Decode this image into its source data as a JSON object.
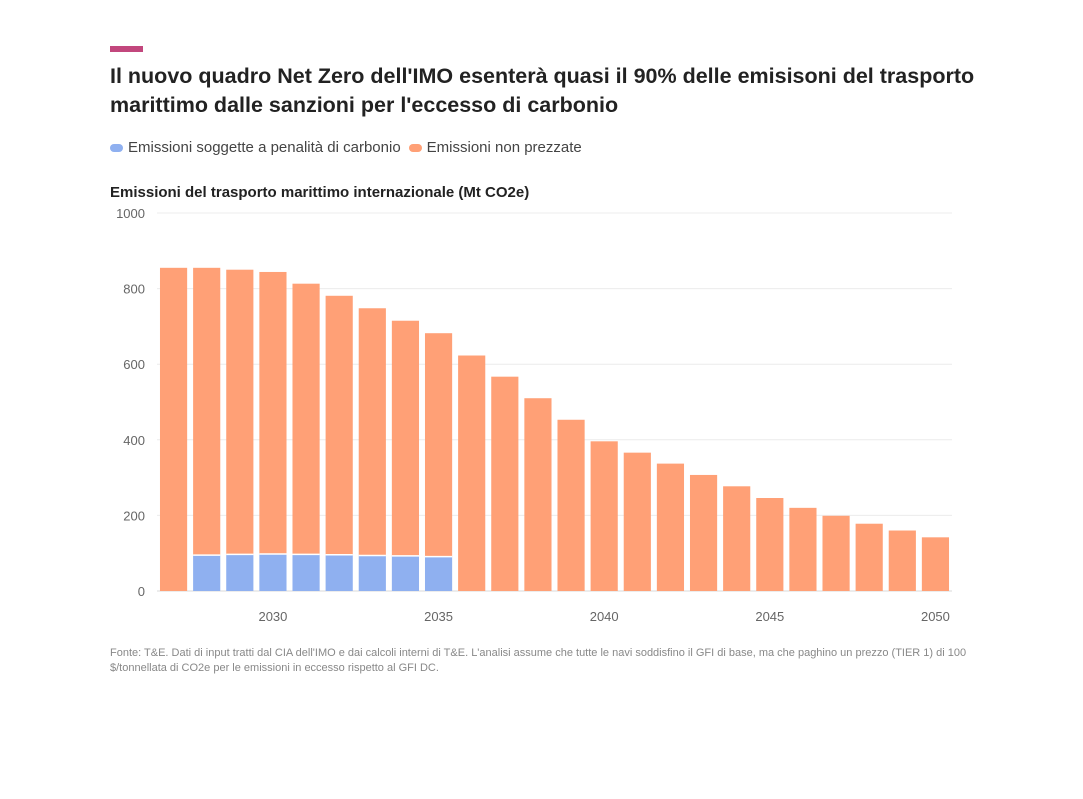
{
  "header": {
    "title": "Il nuovo quadro Net Zero dell'IMO esenterà quasi il 90% delle emisisoni del trasporto marittimo dalle sanzioni per l'eccesso di carbonio",
    "accent_color": "#c2477d"
  },
  "legend": [
    {
      "label": "Emissioni soggette a penalità di carbonio",
      "color": "#8fb0f0"
    },
    {
      "label": "Emissioni non prezzate",
      "color": "#ffa076"
    }
  ],
  "subtitle": "Emissioni del trasporto marittimo internazionale (Mt CO2e)",
  "source": "Fonte: T&E. Dati di input tratti dal CIA dell'IMO e dai calcoli interni di T&E. L'analisi assume che tutte le navi soddisfino il GFI di base, ma che paghino un prezzo (TIER 1) di 100 $/tonnellata di CO2e per le emissioni in eccesso rispetto al GFI DC.",
  "chart_data": {
    "type": "bar",
    "stacked": true,
    "title": "Emissioni del trasporto marittimo internazionale (Mt CO2e)",
    "x": [
      2027,
      2028,
      2029,
      2030,
      2031,
      2032,
      2033,
      2034,
      2035,
      2036,
      2037,
      2038,
      2039,
      2040,
      2041,
      2042,
      2043,
      2044,
      2045,
      2046,
      2047,
      2048,
      2049,
      2050
    ],
    "x_tick_labels": [
      "2030",
      "2035",
      "2040",
      "2045",
      "2050"
    ],
    "x_ticks": [
      2030,
      2035,
      2040,
      2045,
      2050
    ],
    "y_ticks": [
      0,
      200,
      400,
      600,
      800,
      1000
    ],
    "ylim": [
      0,
      1000
    ],
    "grid": true,
    "legend_position": "top-left",
    "series": [
      {
        "name": "Emissioni soggette a penalità di carbonio",
        "color": "#8fb0f0",
        "values": [
          0,
          95,
          97,
          98,
          97,
          96,
          94,
          93,
          91,
          0,
          0,
          0,
          0,
          0,
          0,
          0,
          0,
          0,
          0,
          0,
          0,
          0,
          0,
          0
        ]
      },
      {
        "name": "Emissioni non prezzate",
        "color": "#ffa076",
        "values": [
          855,
          760,
          753,
          746,
          716,
          685,
          654,
          622,
          591,
          623,
          567,
          510,
          453,
          396,
          366,
          337,
          307,
          277,
          246,
          220,
          199,
          178,
          160,
          142
        ]
      }
    ]
  }
}
